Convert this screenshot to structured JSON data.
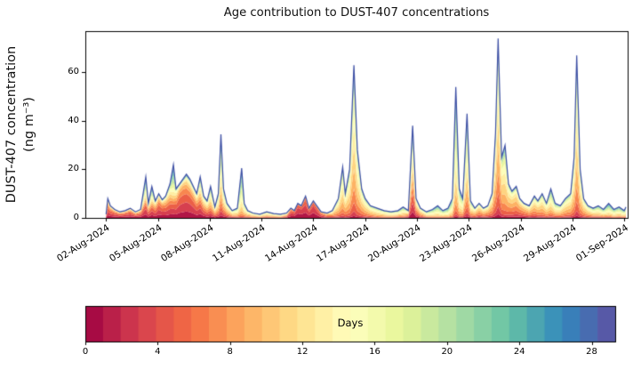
{
  "chart_data": {
    "type": "stacked_area",
    "title": "Age contribution to DUST-407 concentrations",
    "ylabel_lines": [
      "DUST-407 concentration",
      "(ng m⁻³)"
    ],
    "xlabel": "",
    "ylim": [
      0,
      77
    ],
    "yticks": [
      0,
      20,
      40,
      60
    ],
    "x_domain_days": [
      0.8,
      32.2
    ],
    "xtick_days": [
      2,
      5,
      8,
      11,
      14,
      17,
      20,
      23,
      26,
      29,
      32
    ],
    "xtick_labels": [
      "02-Aug-2024",
      "05-Aug-2024",
      "08-Aug-2024",
      "11-Aug-2024",
      "14-Aug-2024",
      "17-Aug-2024",
      "20-Aug-2024",
      "23-Aug-2024",
      "26-Aug-2024",
      "29-Aug-2024",
      "01-Sep-2024"
    ],
    "colorbar": {
      "label": "Days",
      "ticks": [
        0,
        4,
        8,
        12,
        16,
        20,
        24,
        28
      ],
      "vmax": 29.3,
      "segments": 30
    },
    "colormap": {
      "name": "Spectral",
      "anchors": [
        "#9e0142",
        "#d53e4f",
        "#f46d43",
        "#fdae61",
        "#fee08b",
        "#ffffbf",
        "#e6f598",
        "#abdda4",
        "#66c2a5",
        "#3288bd",
        "#5e4fa2"
      ]
    },
    "envelope_color": "#3f51a5",
    "age_bins": {
      "min": 0,
      "max": 30,
      "step": 2
    },
    "series_note": "points: [day_of_august_2024, total_ng_m3, age_mean_days, age_sd_days, young_age_fraction]",
    "points": [
      [
        2.0,
        1.5,
        6,
        5,
        0.35
      ],
      [
        2.1,
        8,
        7,
        5,
        0.3
      ],
      [
        2.25,
        5,
        6,
        5,
        0.3
      ],
      [
        2.5,
        3.5,
        6,
        5,
        0.35
      ],
      [
        2.8,
        2.5,
        6,
        5,
        0.35
      ],
      [
        3.1,
        3,
        6,
        5,
        0.35
      ],
      [
        3.4,
        4,
        6,
        5,
        0.35
      ],
      [
        3.7,
        2.5,
        7,
        5,
        0.3
      ],
      [
        4.0,
        3.5,
        7,
        5,
        0.3
      ],
      [
        4.3,
        17,
        15,
        7,
        0.3
      ],
      [
        4.45,
        6,
        9,
        5,
        0.25
      ],
      [
        4.65,
        13,
        14,
        7,
        0.3
      ],
      [
        4.85,
        7,
        9,
        5,
        0.3
      ],
      [
        5.05,
        10,
        7,
        5,
        0.35
      ],
      [
        5.25,
        7.5,
        7,
        5,
        0.35
      ],
      [
        5.45,
        9,
        8,
        5,
        0.3
      ],
      [
        5.7,
        14,
        10,
        6,
        0.3
      ],
      [
        5.9,
        22,
        17,
        7,
        0.25
      ],
      [
        6.05,
        12,
        9,
        5,
        0.35
      ],
      [
        6.25,
        14,
        7,
        4,
        0.45
      ],
      [
        6.45,
        16,
        7,
        4,
        0.45
      ],
      [
        6.65,
        18,
        8,
        5,
        0.45
      ],
      [
        6.85,
        16,
        8,
        5,
        0.45
      ],
      [
        7.05,
        13,
        8,
        5,
        0.4
      ],
      [
        7.25,
        10,
        9,
        5,
        0.35
      ],
      [
        7.45,
        17,
        12,
        6,
        0.3
      ],
      [
        7.65,
        9,
        10,
        5,
        0.25
      ],
      [
        7.85,
        7,
        10,
        5,
        0.2
      ],
      [
        8.05,
        13,
        12,
        6,
        0.15
      ],
      [
        8.3,
        4.5,
        10,
        5,
        0.12
      ],
      [
        8.5,
        10,
        12,
        6,
        0.1
      ],
      [
        8.65,
        34.5,
        14,
        6,
        0.08
      ],
      [
        8.8,
        12,
        12,
        6,
        0.1
      ],
      [
        9.0,
        6,
        11,
        5,
        0.1
      ],
      [
        9.3,
        3,
        11,
        5,
        0.08
      ],
      [
        9.6,
        4,
        12,
        6,
        0
      ],
      [
        9.85,
        20.5,
        16,
        6,
        0
      ],
      [
        10.0,
        6,
        13,
        6,
        0
      ],
      [
        10.2,
        3,
        11,
        5,
        0
      ],
      [
        10.5,
        2,
        11,
        5,
        0
      ],
      [
        10.9,
        1.5,
        11,
        5,
        0
      ],
      [
        11.3,
        2.5,
        11,
        5,
        0
      ],
      [
        11.7,
        1.8,
        11,
        5,
        0
      ],
      [
        12.1,
        1.5,
        11,
        5,
        0
      ],
      [
        12.45,
        2,
        9,
        5,
        0.1
      ],
      [
        12.7,
        4,
        4,
        3,
        0.3
      ],
      [
        12.9,
        3,
        3,
        2.5,
        0.3
      ],
      [
        13.1,
        6,
        2.5,
        2,
        0.2
      ],
      [
        13.3,
        5,
        2.5,
        2,
        0.2
      ],
      [
        13.55,
        9,
        3,
        2.5,
        0.15
      ],
      [
        13.75,
        4,
        3,
        2.5,
        0.2
      ],
      [
        14.0,
        7,
        2.5,
        2,
        0.15
      ],
      [
        14.2,
        5,
        3,
        2.5,
        0.15
      ],
      [
        14.45,
        2.5,
        5,
        3,
        0.1
      ],
      [
        14.8,
        2,
        7,
        4,
        0
      ],
      [
        15.1,
        3,
        9,
        5,
        0
      ],
      [
        15.45,
        8,
        11,
        5,
        0
      ],
      [
        15.7,
        21,
        12,
        5,
        0
      ],
      [
        15.85,
        10,
        11,
        5,
        0
      ],
      [
        16.1,
        20,
        12,
        5,
        0
      ],
      [
        16.35,
        63,
        12,
        5,
        0
      ],
      [
        16.55,
        28,
        12,
        5,
        0
      ],
      [
        16.8,
        12,
        11,
        5,
        0
      ],
      [
        17.0,
        8,
        11,
        5,
        0
      ],
      [
        17.3,
        5,
        11,
        5,
        0
      ],
      [
        17.7,
        4,
        12,
        5,
        0
      ],
      [
        18.1,
        3,
        12,
        5,
        0
      ],
      [
        18.5,
        2.5,
        12,
        5,
        0
      ],
      [
        18.9,
        3,
        12,
        6,
        0
      ],
      [
        19.2,
        4.5,
        13,
        6,
        0
      ],
      [
        19.5,
        3,
        10,
        5,
        0.1
      ],
      [
        19.75,
        38,
        12,
        6,
        0.18
      ],
      [
        19.95,
        8,
        10,
        5,
        0.15
      ],
      [
        20.2,
        4,
        10,
        5,
        0.05
      ],
      [
        20.55,
        2.5,
        12,
        6,
        0
      ],
      [
        20.9,
        3.5,
        14,
        6,
        0
      ],
      [
        21.2,
        5,
        15,
        6,
        0
      ],
      [
        21.5,
        3,
        14,
        6,
        0
      ],
      [
        21.8,
        4,
        15,
        6,
        0
      ],
      [
        22.05,
        8,
        15,
        6,
        0
      ],
      [
        22.25,
        54,
        15,
        6,
        0
      ],
      [
        22.45,
        12,
        14,
        6,
        0
      ],
      [
        22.65,
        8,
        13,
        6,
        0
      ],
      [
        22.9,
        43,
        13,
        6,
        0
      ],
      [
        23.1,
        7,
        12,
        6,
        0
      ],
      [
        23.35,
        4,
        10,
        5,
        0
      ],
      [
        23.6,
        6,
        9,
        5,
        0
      ],
      [
        23.85,
        4,
        9,
        5,
        0
      ],
      [
        24.1,
        5,
        9,
        5,
        0
      ],
      [
        24.35,
        10,
        10,
        5,
        0
      ],
      [
        24.55,
        35,
        11,
        5,
        0
      ],
      [
        24.7,
        74,
        11,
        5,
        0
      ],
      [
        24.9,
        25,
        11,
        5,
        0
      ],
      [
        25.1,
        30,
        12,
        5,
        0
      ],
      [
        25.3,
        14,
        10,
        5,
        0
      ],
      [
        25.5,
        11,
        9,
        5,
        0
      ],
      [
        25.75,
        13,
        9,
        5,
        0
      ],
      [
        25.95,
        8,
        8,
        5,
        0
      ],
      [
        26.2,
        6,
        8,
        5,
        0
      ],
      [
        26.5,
        5,
        9,
        5,
        0
      ],
      [
        26.8,
        9,
        10,
        5,
        0
      ],
      [
        27.0,
        7,
        10,
        5,
        0
      ],
      [
        27.25,
        10,
        11,
        5,
        0
      ],
      [
        27.5,
        6,
        11,
        5,
        0
      ],
      [
        27.75,
        12,
        13,
        6,
        0
      ],
      [
        28.0,
        6,
        12,
        6,
        0
      ],
      [
        28.3,
        5,
        11,
        5,
        0
      ],
      [
        28.6,
        8,
        11,
        5,
        0
      ],
      [
        28.9,
        10,
        11,
        5,
        0
      ],
      [
        29.1,
        25,
        12,
        5,
        0
      ],
      [
        29.25,
        67,
        12,
        5,
        0
      ],
      [
        29.45,
        20,
        12,
        5,
        0
      ],
      [
        29.65,
        8,
        11,
        5,
        0
      ],
      [
        29.9,
        5,
        11,
        5,
        0
      ],
      [
        30.2,
        4,
        12,
        6,
        0
      ],
      [
        30.5,
        5,
        13,
        6,
        0
      ],
      [
        30.8,
        3.5,
        13,
        6,
        0
      ],
      [
        31.1,
        6,
        15,
        7,
        0
      ],
      [
        31.4,
        3.5,
        14,
        6,
        0
      ],
      [
        31.7,
        4.5,
        14,
        6,
        0
      ],
      [
        32.0,
        3,
        14,
        6,
        0
      ],
      [
        32.1,
        4.5,
        14,
        6,
        0
      ]
    ]
  }
}
